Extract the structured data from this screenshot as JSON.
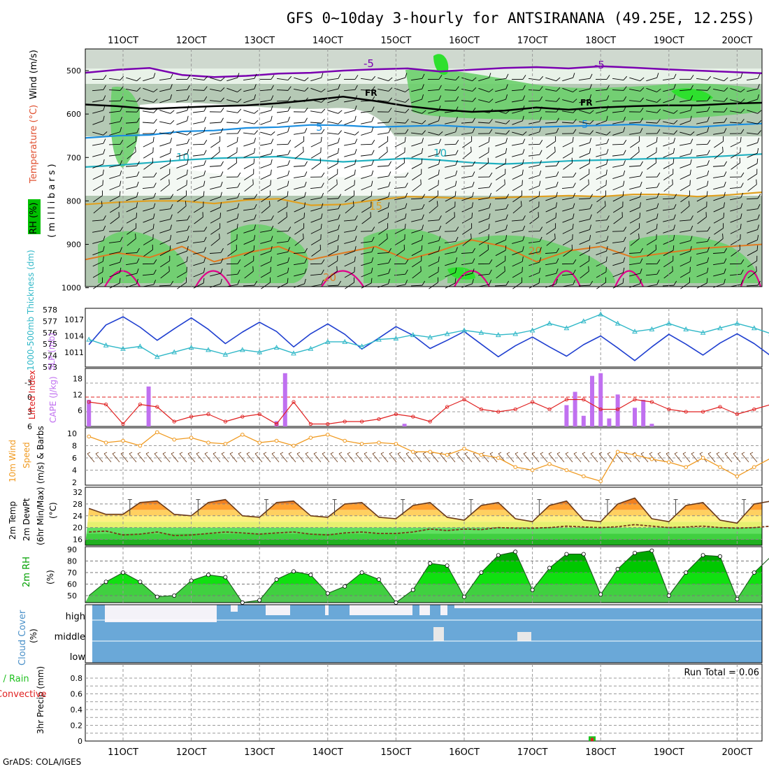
{
  "header": {
    "title": "GFS 0~10day 3-hourly for ANTSIRANANA (49.25E, 12.25S)",
    "footer": "GrADS: COLA/IGES"
  },
  "colors": {
    "temp_cold": "#7a00b0",
    "temp_fr": "#000000",
    "temp_5": "#1a8ee0",
    "temp_10": "#20b0c0",
    "temp_15": "#e0a020",
    "temp_20": "#e07a20",
    "temp_25": "#e0008a",
    "slp": "#1f3fd0",
    "thickness": "#30b8c8",
    "lifted": "#e02020",
    "cape": "#c070f0",
    "wind": "#f09a20",
    "barb": "#704020",
    "temp_line": "#6a3a1a",
    "dewpt": "#7a3a1a",
    "rh_green": "#00c000",
    "cloud": "#6aa8d8",
    "cloud_bg": "#f4f2f8",
    "precip_total": "#20c020",
    "precip_conv": "#e02020"
  },
  "x_axis": {
    "labels": [
      "11OCT",
      "12OCT",
      "13OCT",
      "14OCT",
      "15OCT",
      "16OCT",
      "17OCT",
      "18OCT",
      "19OCT",
      "20OCT"
    ]
  },
  "panels": {
    "sounding": {
      "side_labels": [
        "RH (%)",
        "Temperature (°C)",
        "Wind (m/s)"
      ],
      "axis_label": "(millibars)",
      "y_ticks": [
        "500",
        "600",
        "700",
        "800",
        "900",
        "1000"
      ]
    },
    "slp": {
      "label_thickness": "1000-500mb Thickness (dm)",
      "label_slp": "SLP (mb)",
      "left_ticks": [
        "578",
        "577",
        "576",
        "575",
        "574",
        "573"
      ],
      "right_ticks": [
        "1017",
        "1014",
        "1011"
      ]
    },
    "cape": {
      "label_li": "Lifted Index",
      "label_cape": "CAPE (J/kg)",
      "left_ticks": [
        "-3",
        "0",
        "3",
        "6"
      ],
      "right_ticks": [
        "18",
        "12",
        "6"
      ]
    },
    "wind": {
      "label_a": "10m Wind",
      "label_b": "Speed",
      "label_c": "(m/s) & Barbs",
      "ticks": [
        "10",
        "8",
        "6",
        "4",
        "2"
      ]
    },
    "temp": {
      "label_a": "2m Temp",
      "label_b": "2m DewPt",
      "label_c": "(6hr Min/Max)",
      "unit": "(°C)",
      "ticks": [
        "32",
        "28",
        "24",
        "20",
        "16"
      ]
    },
    "rh": {
      "label": "2m RH",
      "unit": "(%)",
      "ticks": [
        "90",
        "80",
        "70",
        "60",
        "50"
      ]
    },
    "cloud": {
      "label": "Cloud Cover",
      "unit": "(%)",
      "levels": [
        "high",
        "middle",
        "low"
      ]
    },
    "precip": {
      "label_a": "3hr Precip (mm)",
      "label_b": "Total / Rain",
      "label_c": "Convective",
      "run_total": "Run Total = 0.06",
      "ticks": [
        "0.8",
        "0.6",
        "0.4",
        "0.2",
        "0"
      ]
    }
  },
  "chart_data": [
    {
      "type": "line",
      "title": "SLP (mb)",
      "x_unit": "days from 11OCT 00Z",
      "x": [
        -0.5,
        -0.25,
        0,
        0.25,
        0.5,
        0.75,
        1,
        1.25,
        1.5,
        1.75,
        2,
        2.25,
        2.5,
        2.75,
        3,
        3.25,
        3.5,
        3.75,
        4,
        4.25,
        4.5,
        4.75,
        5,
        5.25,
        5.5,
        5.75,
        6,
        6.25,
        6.5,
        6.75,
        7,
        7.25,
        7.5,
        7.75,
        8,
        8.25,
        8.5,
        8.75,
        9,
        9.25,
        9.5,
        9.75,
        10,
        10.25
      ],
      "series": [
        {
          "name": "SLP",
          "values": [
            1012.4,
            1016.0,
            1017.5,
            1015.6,
            1013.2,
            1015.3,
            1017.3,
            1015.2,
            1012.6,
            1014.7,
            1016.5,
            1014.8,
            1012.0,
            1014.4,
            1016.2,
            1014.3,
            1011.6,
            1013.6,
            1015.7,
            1014.1,
            1011.7,
            1013.2,
            1014.8,
            1012.5,
            1010.2,
            1012.2,
            1013.8,
            1012.0,
            1010.3,
            1012.4,
            1014.0,
            1011.8,
            1009.5,
            1012.0,
            1014.3,
            1012.5,
            1010.5,
            1012.7,
            1014.4,
            1012.6,
            1010.3,
            1011.6,
            1013.1,
            1013.1
          ]
        },
        {
          "name": "Thickness",
          "values": [
            575.4,
            574.9,
            574.6,
            574.8,
            573.9,
            574.3,
            574.7,
            574.5,
            574.1,
            574.5,
            574.3,
            574.7,
            574.2,
            574.6,
            575.2,
            575.2,
            574.8,
            575.4,
            575.5,
            575.8,
            575.6,
            575.9,
            576.2,
            576.0,
            575.8,
            575.9,
            576.2,
            576.8,
            576.4,
            577.0,
            577.6,
            576.8,
            576.1,
            576.3,
            576.8,
            576.3,
            576.0,
            576.4,
            576.8,
            576.4,
            575.9,
            576.3,
            576.6,
            576.8
          ]
        }
      ],
      "ylim_slp": [
        1009.5,
        1018.0
      ],
      "ylim_thickness": [
        573,
        578
      ]
    },
    {
      "type": "bar",
      "title": "CAPE (J/kg)",
      "x_unit": "days from 11OCT 00Z",
      "x": [
        -0.5,
        0.375,
        2.25,
        2.375,
        4.125,
        6.5,
        6.625,
        6.75,
        6.875,
        7.0,
        7.125,
        7.25,
        7.5,
        7.625,
        7.75,
        9.625
      ],
      "values": [
        10,
        15,
        2,
        20,
        1,
        8,
        13,
        4,
        19,
        20,
        3,
        12,
        7,
        10,
        1,
        3
      ],
      "ylim": [
        0,
        21
      ]
    },
    {
      "type": "line",
      "title": "Lifted Index",
      "x_unit": "days from 11OCT 00Z",
      "x": [
        -0.5,
        -0.25,
        0,
        0.25,
        0.5,
        0.75,
        1,
        1.25,
        1.5,
        1.75,
        2,
        2.25,
        2.5,
        2.75,
        3,
        3.25,
        3.5,
        3.75,
        4,
        4.25,
        4.5,
        4.75,
        5,
        5.25,
        5.5,
        5.75,
        6,
        6.25,
        6.5,
        6.75,
        7,
        7.25,
        7.5,
        7.75,
        8,
        8.25,
        8.5,
        8.75,
        9,
        9.25,
        9.5,
        9.75,
        10,
        10.25
      ],
      "series": [
        {
          "name": "Lifted Index",
          "values": [
            1.0,
            1.5,
            5.5,
            1.5,
            2.0,
            5.0,
            4.0,
            3.5,
            5.0,
            4.0,
            3.5,
            5.5,
            1.0,
            5.5,
            5.5,
            5.0,
            5.0,
            4.5,
            3.5,
            4.0,
            5.0,
            2.0,
            0.5,
            2.5,
            3.0,
            2.5,
            1.0,
            2.5,
            0.5,
            0.5,
            2.5,
            2.5,
            0.5,
            1.0,
            2.5,
            3.0,
            3.0,
            2.0,
            3.5,
            2.5,
            1.5,
            1.5,
            1.5,
            0.0
          ]
        }
      ],
      "ylim": [
        6,
        -5
      ]
    },
    {
      "type": "line",
      "title": "10m Wind Speed (m/s)",
      "x_unit": "days from 11OCT 00Z",
      "x": [
        -0.5,
        -0.25,
        0,
        0.25,
        0.5,
        0.75,
        1,
        1.25,
        1.5,
        1.75,
        2,
        2.25,
        2.5,
        2.75,
        3,
        3.25,
        3.5,
        3.75,
        4,
        4.25,
        4.5,
        4.75,
        5,
        5.25,
        5.5,
        5.75,
        6,
        6.25,
        6.5,
        6.75,
        7,
        7.25,
        7.5,
        7.75,
        8,
        8.25,
        8.5,
        8.75,
        9,
        9.25,
        9.5,
        9.75,
        10,
        10.25
      ],
      "series": [
        {
          "name": "Wind Speed",
          "values": [
            9.5,
            8.5,
            8.8,
            8.0,
            10.2,
            9.0,
            9.3,
            8.5,
            8.3,
            9.8,
            8.5,
            8.8,
            8.0,
            9.3,
            9.8,
            8.8,
            8.3,
            8.5,
            8.3,
            7.0,
            7.0,
            6.5,
            7.5,
            6.5,
            6.0,
            4.5,
            4.0,
            5.0,
            4.0,
            3.0,
            2.2,
            7.0,
            6.5,
            5.8,
            5.3,
            4.5,
            6.0,
            4.5,
            3.0,
            4.5,
            6.0,
            5.5,
            6.3,
            7.0
          ]
        }
      ],
      "ylim": [
        2,
        10.5
      ]
    },
    {
      "type": "area",
      "title": "2m Temp (°C)",
      "x_unit": "days from 11OCT 00Z",
      "x": [
        -0.5,
        -0.25,
        0,
        0.25,
        0.5,
        0.75,
        1,
        1.25,
        1.5,
        1.75,
        2,
        2.25,
        2.5,
        2.75,
        3,
        3.25,
        3.5,
        3.75,
        4,
        4.25,
        4.5,
        4.75,
        5,
        5.25,
        5.5,
        5.75,
        6,
        6.25,
        6.5,
        6.75,
        7,
        7.25,
        7.5,
        7.75,
        8,
        8.25,
        8.5,
        8.75,
        9,
        9.25,
        9.5,
        9.75,
        10,
        10.25
      ],
      "series": [
        {
          "name": "2m Temp",
          "values": [
            26.5,
            24.5,
            24.5,
            28.5,
            29,
            24.5,
            24,
            28.5,
            29.5,
            24,
            23.5,
            28.5,
            29,
            24,
            23.5,
            28,
            28.5,
            23.5,
            23,
            27.5,
            28.5,
            23.5,
            22.5,
            27.5,
            28.5,
            23,
            22,
            27.5,
            29,
            22.5,
            22,
            28,
            30,
            23,
            22,
            27.5,
            28.5,
            22.5,
            21.5,
            28,
            29,
            23.5,
            23,
            29
          ]
        },
        {
          "name": "2m DewPt",
          "values": [
            18.5,
            18.8,
            17.5,
            17.8,
            18.5,
            17.3,
            17.5,
            18.0,
            18.5,
            18.2,
            17.8,
            18.2,
            18.5,
            17.8,
            17.5,
            18.2,
            18.5,
            18.0,
            18.0,
            18.5,
            19.5,
            19.0,
            19.5,
            19.3,
            20.0,
            19.8,
            19.8,
            20.0,
            20.5,
            20.2,
            20.0,
            20.3,
            21.0,
            20.5,
            20.0,
            20.2,
            20.5,
            20.0,
            19.8,
            20.0,
            20.5,
            20.2,
            20.0,
            19.8
          ]
        }
      ],
      "ylim": [
        14,
        32
      ]
    },
    {
      "type": "area",
      "title": "2m RH (%)",
      "x_unit": "days from 11OCT 00Z",
      "x": [
        -0.5,
        -0.25,
        0,
        0.25,
        0.5,
        0.75,
        1,
        1.25,
        1.5,
        1.75,
        2,
        2.25,
        2.5,
        2.75,
        3,
        3.25,
        3.5,
        3.75,
        4,
        4.25,
        4.5,
        4.75,
        5,
        5.25,
        5.5,
        5.75,
        6,
        6.25,
        6.5,
        6.75,
        7,
        7.25,
        7.5,
        7.75,
        8,
        8.25,
        8.5,
        8.75,
        9,
        9.25,
        9.5,
        9.75,
        10,
        10.25
      ],
      "series": [
        {
          "name": "2m RH",
          "values": [
            50,
            62,
            70,
            62,
            49,
            50,
            63,
            68,
            66,
            44,
            46,
            64,
            71,
            68,
            52,
            58,
            70,
            64,
            44,
            55,
            78,
            76,
            49,
            70,
            85,
            88,
            55,
            74,
            86,
            86,
            51,
            73,
            87,
            89,
            50,
            70,
            85,
            84,
            47,
            70,
            84,
            83,
            50,
            74
          ]
        }
      ],
      "ylim": [
        40,
        90
      ]
    },
    {
      "type": "bar",
      "title": "3hr Precip (mm)",
      "x_unit": "days from 11OCT 00Z",
      "x": [
        6.875
      ],
      "series": [
        {
          "name": "Total / Rain",
          "values": [
            0.06
          ]
        },
        {
          "name": "Convective",
          "values": [
            0.04
          ]
        }
      ],
      "ylim": [
        0,
        0.95
      ]
    }
  ]
}
